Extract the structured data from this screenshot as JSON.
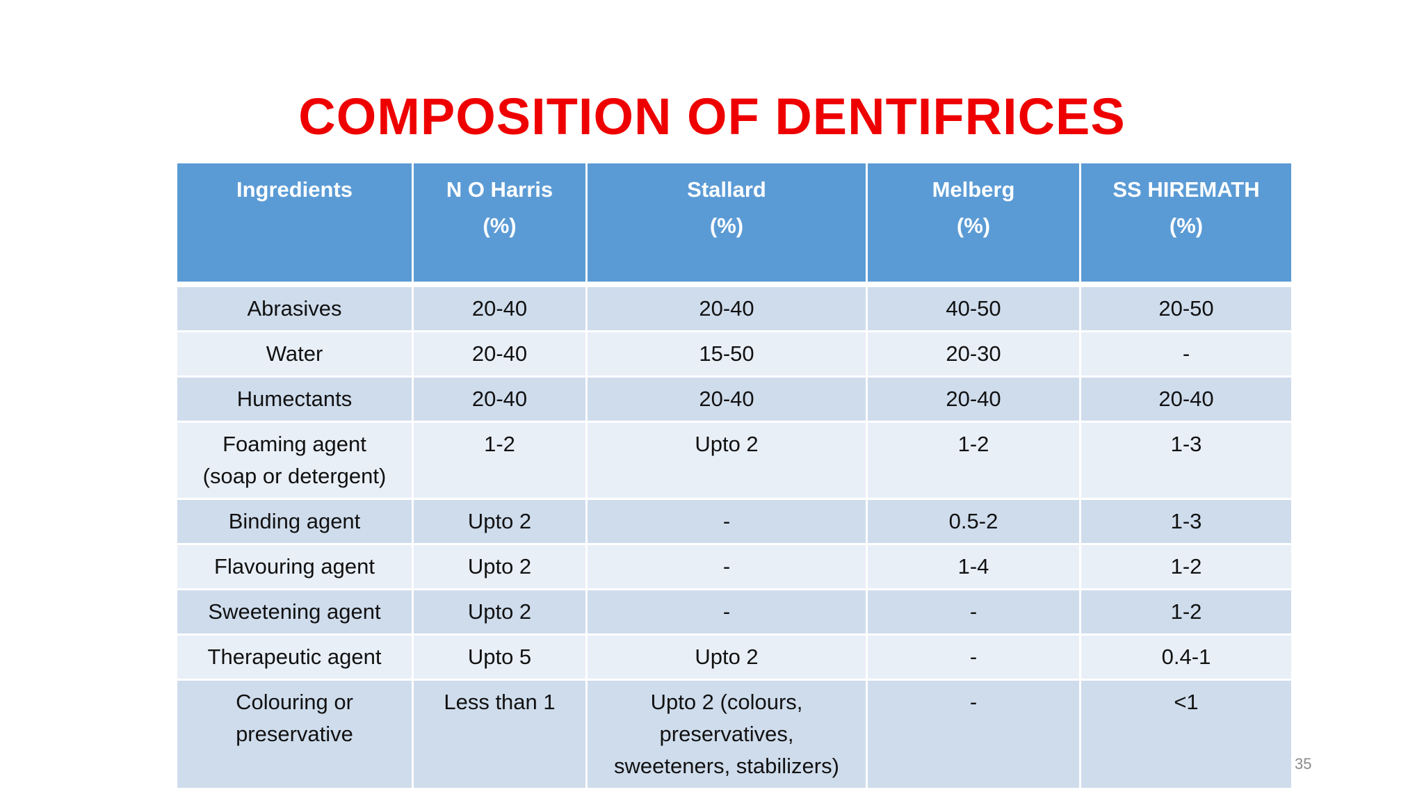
{
  "title": "COMPOSITION OF DENTIFRICES",
  "table": {
    "header": [
      "Ingredients",
      "N O Harris\n(%)",
      "Stallard\n(%)",
      "Melberg\n(%)",
      "SS HIREMATH\n(%)"
    ],
    "rows": [
      [
        "Abrasives",
        "20-40",
        "20-40",
        "40-50",
        "20-50"
      ],
      [
        "Water",
        "20-40",
        "15-50",
        "20-30",
        "-"
      ],
      [
        "Humectants",
        "20-40",
        "20-40",
        "20-40",
        "20-40"
      ],
      [
        "Foaming agent\n(soap or detergent)",
        "1-2",
        "Upto 2",
        "1-2",
        "1-3"
      ],
      [
        "Binding agent",
        "Upto  2",
        "-",
        "0.5-2",
        "1-3"
      ],
      [
        "Flavouring agent",
        "Upto 2",
        "-",
        "1-4",
        "1-2"
      ],
      [
        "Sweetening agent",
        "Upto 2",
        "-",
        "-",
        "1-2"
      ],
      [
        "Therapeutic agent",
        "Upto 5",
        "Upto 2",
        "-",
        "0.4-1"
      ],
      [
        "Colouring or\npreservative",
        "Less than 1",
        "Upto 2 (colours,\npreservatives,\nsweeteners, stabilizers)",
        "-",
        "<1"
      ]
    ]
  },
  "page_number": "35"
}
